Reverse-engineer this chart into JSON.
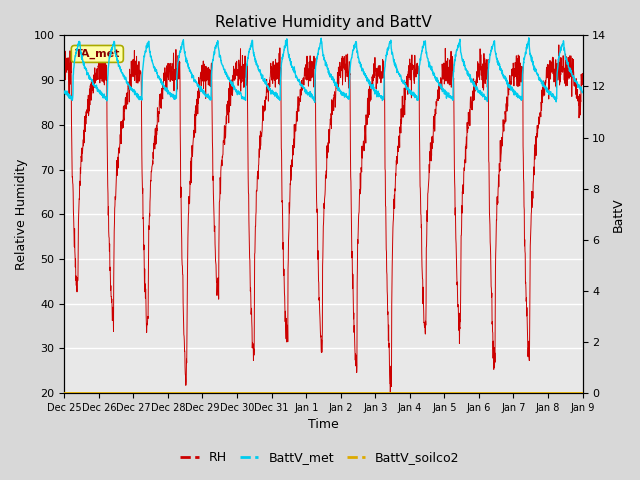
{
  "title": "Relative Humidity and BattV",
  "xlabel": "Time",
  "ylabel_left": "Relative Humidity",
  "ylabel_right": "BattV",
  "ylim_left": [
    20,
    100
  ],
  "ylim_right": [
    0,
    14
  ],
  "bg_color": "#d8d8d8",
  "plot_bg_color": "#e8e8e8",
  "rh_color": "#cc0000",
  "battv_met_color": "#00ccee",
  "battv_soilco2_color": "#ddaa00",
  "legend_items": [
    "RH",
    "BattV_met",
    "BattV_soilco2"
  ],
  "annotation_text": "TA_met",
  "annotation_bg": "#ffffaa",
  "annotation_border": "#aaaa00",
  "x_tick_labels": [
    "Dec 25",
    "Dec 26",
    "Dec 27",
    "Dec 28",
    "Dec 29",
    "Dec 30",
    "Dec 31",
    "Jan 1",
    "Jan 2",
    "Jan 3",
    "Jan 4",
    "Jan 5",
    "Jan 6",
    "Jan 7",
    "Jan 8",
    "Jan 9"
  ],
  "n_days": 15,
  "rh_min_values": [
    45,
    37,
    36,
    25,
    43,
    30,
    32,
    32,
    27,
    23,
    35,
    34,
    29,
    29,
    85
  ],
  "rh_drop_positions": [
    0.35,
    0.38,
    0.38,
    0.5,
    0.42,
    0.45,
    0.42,
    0.42,
    0.42,
    0.42,
    0.42,
    0.42,
    0.42,
    0.42,
    0.9
  ],
  "battv_peak": 13.8,
  "battv_base": 11.8
}
